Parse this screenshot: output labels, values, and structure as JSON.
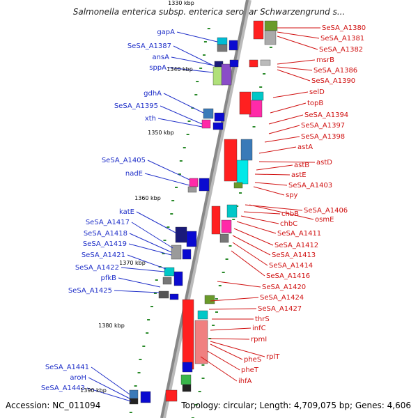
{
  "title": "Salmonella enterica subsp. enterica serovar Schwarzengrund s...",
  "footer": {
    "accession": "Accession: NC_011094",
    "summary": "Topology: circular; Length: 4,709,075 bp; Genes: 4,606"
  },
  "colors": {
    "left_label": "#1f2fc8",
    "right_label": "#d01010",
    "backbone": "#888888"
  },
  "kbp_marks": [
    "1330 kbp",
    "1340 kbp",
    "1350 kbp",
    "1360 kbp",
    "1370 kbp",
    "1380 kbp",
    "1390 kbp"
  ],
  "left_genes": [
    "gapA",
    "SeSA_A1387",
    "ansA",
    "sppA",
    "gdhA",
    "SeSA_A1395",
    "xth",
    "SeSA_A1405",
    "nadE",
    "katE",
    "SeSA_A1417",
    "SeSA_A1418",
    "SeSA_A1419",
    "SeSA_A1421",
    "SeSA_A1422",
    "pfkB",
    "SeSA_A1425",
    "SeSA_A1441",
    "aroH",
    "SeSA_A1443"
  ],
  "right_genes": [
    "SeSA_A1380",
    "SeSA_A1381",
    "SeSA_A1382",
    "msrB",
    "SeSA_A1386",
    "SeSA_A1390",
    "selD",
    "topB",
    "SeSA_A1394",
    "SeSA_A1397",
    "SeSA_A1398",
    "astA",
    "astD",
    "astB",
    "astE",
    "SeSA_A1403",
    "spy",
    "SeSA_A1406",
    "chbB",
    "osmE",
    "chbC",
    "SeSA_A1411",
    "SeSA_A1412",
    "SeSA_A1413",
    "SeSA_A1414",
    "SeSA_A1416",
    "SeSA_A1420",
    "SeSA_A1424",
    "SeSA_A1427",
    "thrS",
    "infC",
    "rpmI",
    "rplT",
    "pheS",
    "pheT",
    "ihfA"
  ]
}
